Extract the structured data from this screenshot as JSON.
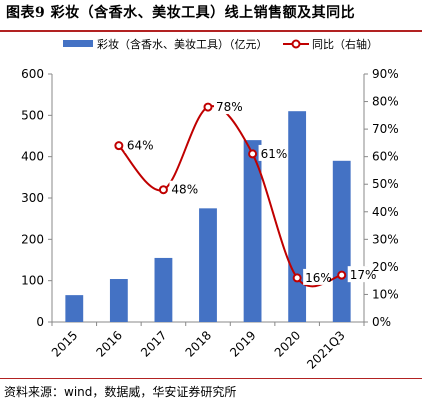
{
  "figure": {
    "title": "图表9 彩妆（含香水、美妆工具）线上销售额及其同比",
    "source": "资料来源：wind，数据威，华安证券研究所"
  },
  "chart_data": {
    "type": "bar+line",
    "categories": [
      "2015",
      "2016",
      "2017",
      "2018",
      "2019",
      "2020",
      "2021Q3"
    ],
    "series": [
      {
        "name": "彩妆（含香水、美妆工具）（亿元）",
        "type": "bar",
        "axis": "left",
        "color": "#4472C4",
        "values": [
          65,
          104,
          155,
          275,
          440,
          510,
          390
        ]
      },
      {
        "name": "同比（右轴）",
        "type": "line",
        "axis": "right",
        "color": "#C00000",
        "smooth": true,
        "values": [
          null,
          64,
          48,
          78,
          61,
          16,
          17
        ],
        "labels": [
          "",
          "64%",
          "48%",
          "78%",
          "61%",
          "16%",
          "17%"
        ]
      }
    ],
    "y_left": {
      "min": 0,
      "max": 600,
      "ticks": [
        0,
        100,
        200,
        300,
        400,
        500,
        600
      ]
    },
    "y_right": {
      "min": 0,
      "max": 90,
      "ticks": [
        "0%",
        "10%",
        "20%",
        "30%",
        "40%",
        "50%",
        "60%",
        "70%",
        "80%",
        "90%"
      ]
    },
    "legend": {
      "position": "top"
    },
    "grid": false
  }
}
